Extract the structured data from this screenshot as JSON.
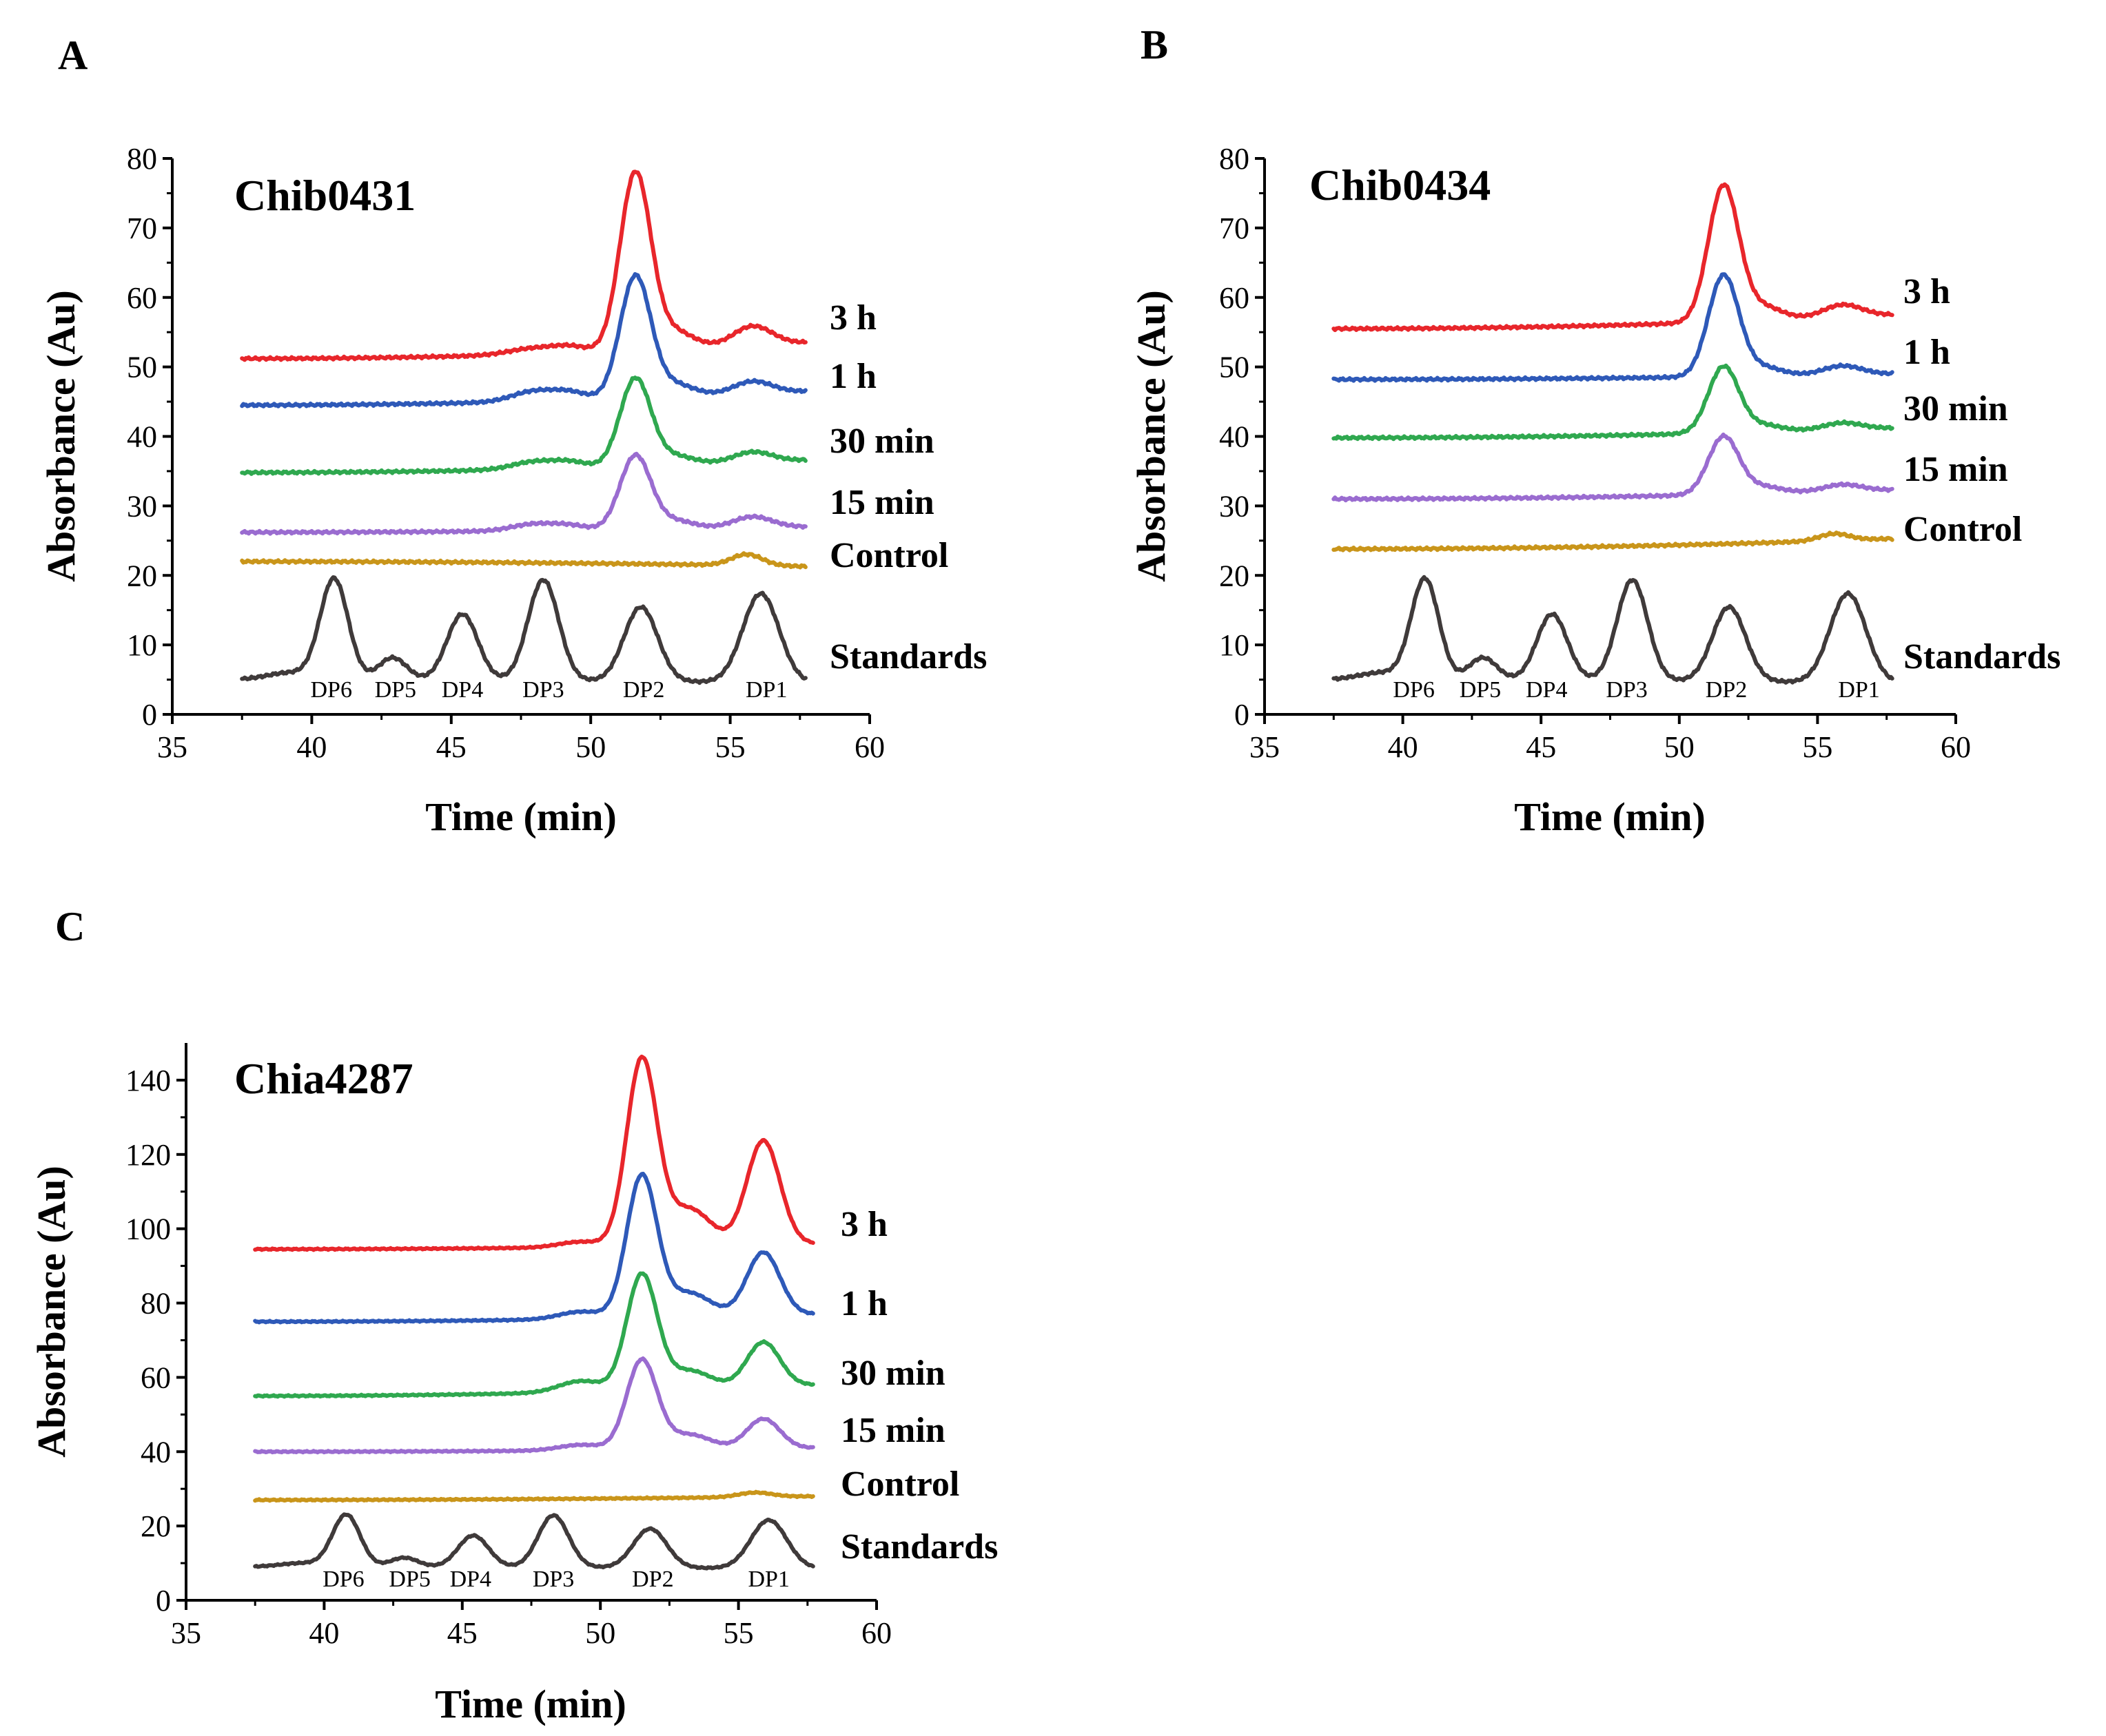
{
  "colors": {
    "3 h": "#e8262b",
    "1 h": "#2e59b8",
    "30 min": "#2fa84f",
    "15 min": "#9a6cd0",
    "Control": "#c9951a",
    "Standards": "#3f3a3a"
  },
  "chart_data": [
    {
      "panel": "A",
      "type": "line",
      "title": "Chib0431",
      "xlabel": "Time (min)",
      "ylabel": "Absorbance (Au)",
      "xlim": [
        35,
        60
      ],
      "ylim": [
        0,
        80
      ],
      "xticks": [
        35,
        40,
        45,
        50,
        55,
        60
      ],
      "yticks": [
        0,
        10,
        20,
        30,
        40,
        50,
        60,
        70,
        80
      ],
      "x_range": [
        37.5,
        57.7
      ],
      "series": [
        {
          "name": "3 h",
          "label": "3 h",
          "baseline": [
            51.2,
            53.5
          ],
          "peaks": [
            [
              48.0,
              0.9,
              0.9
            ],
            [
              49.3,
              0.8,
              0.6
            ],
            [
              51.6,
              25.5,
              0.55
            ],
            [
              53.0,
              2.5,
              0.7
            ],
            [
              55.8,
              2.8,
              0.7
            ]
          ]
        },
        {
          "name": "1 h",
          "label": "1 h",
          "baseline": [
            44.5,
            46.5
          ],
          "peaks": [
            [
              48.0,
              1.5,
              0.8
            ],
            [
              49.3,
              1.0,
              0.6
            ],
            [
              51.6,
              17.5,
              0.55
            ],
            [
              53.0,
              1.8,
              0.7
            ],
            [
              55.8,
              1.8,
              0.7
            ]
          ]
        },
        {
          "name": "30 min",
          "label": "30 min",
          "baseline": [
            34.8,
            36.6
          ],
          "peaks": [
            [
              48.0,
              1.1,
              0.8
            ],
            [
              49.3,
              0.8,
              0.6
            ],
            [
              51.6,
              12.6,
              0.55
            ],
            [
              53.0,
              1.3,
              0.7
            ],
            [
              55.8,
              1.5,
              0.7
            ]
          ]
        },
        {
          "name": "15 min",
          "label": "15 min",
          "baseline": [
            26.2,
            27.0
          ],
          "peaks": [
            [
              48.0,
              1.0,
              0.8
            ],
            [
              49.3,
              0.6,
              0.6
            ],
            [
              51.6,
              10.6,
              0.55
            ],
            [
              53.0,
              1.2,
              0.7
            ],
            [
              55.8,
              1.6,
              0.7
            ]
          ]
        },
        {
          "name": "Control",
          "label": "Control",
          "baseline": [
            22.0,
            21.3
          ],
          "peaks": [
            [
              55.6,
              1.6,
              0.55
            ]
          ]
        },
        {
          "name": "Standards",
          "label": "Standards",
          "baseline": [
            5.0,
            4.5
          ],
          "peaks": [
            [
              39.2,
              1.0,
              0.8
            ],
            [
              40.8,
              14.5,
              0.5
            ],
            [
              42.9,
              3.2,
              0.5
            ],
            [
              45.4,
              9.5,
              0.55
            ],
            [
              48.3,
              14.5,
              0.55
            ],
            [
              51.8,
              10.7,
              0.6
            ],
            [
              56.1,
              12.8,
              0.65
            ]
          ]
        }
      ],
      "peak_labels": [
        {
          "text": "DP6",
          "x": 40.7
        },
        {
          "text": "DP5",
          "x": 43.0
        },
        {
          "text": "DP4",
          "x": 45.4
        },
        {
          "text": "DP3",
          "x": 48.3
        },
        {
          "text": "DP2",
          "x": 51.9
        },
        {
          "text": "DP1",
          "x": 56.3
        }
      ]
    },
    {
      "panel": "B",
      "type": "line",
      "title": "Chib0434",
      "xlabel": "Time (min)",
      "ylabel": "Absorbance (Au)",
      "xlim": [
        35,
        60
      ],
      "ylim": [
        0,
        80
      ],
      "xticks": [
        35,
        40,
        45,
        50,
        55,
        60
      ],
      "yticks": [
        0,
        10,
        20,
        30,
        40,
        50,
        60,
        70,
        80
      ],
      "x_range": [
        37.5,
        57.7
      ],
      "series": [
        {
          "name": "3 h",
          "label": "3 h",
          "baseline": [
            55.5,
            57.5
          ],
          "peaks": [
            [
              51.6,
              19.5,
              0.55
            ],
            [
              53.0,
              2.0,
              0.7
            ],
            [
              55.9,
              1.8,
              0.7
            ]
          ]
        },
        {
          "name": "1 h",
          "label": "1 h",
          "baseline": [
            48.2,
            49.0
          ],
          "peaks": [
            [
              51.6,
              14.5,
              0.55
            ],
            [
              53.0,
              1.3,
              0.7
            ],
            [
              55.9,
              1.3,
              0.7
            ]
          ]
        },
        {
          "name": "30 min",
          "label": "30 min",
          "baseline": [
            39.8,
            41.2
          ],
          "peaks": [
            [
              51.6,
              9.5,
              0.55
            ],
            [
              53.0,
              1.0,
              0.7
            ],
            [
              55.9,
              1.0,
              0.7
            ]
          ]
        },
        {
          "name": "15 min",
          "label": "15 min",
          "baseline": [
            31.0,
            32.3
          ],
          "peaks": [
            [
              51.6,
              8.3,
              0.55
            ],
            [
              53.0,
              1.0,
              0.7
            ],
            [
              55.9,
              1.0,
              0.7
            ]
          ]
        },
        {
          "name": "Control",
          "label": "Control",
          "baseline": [
            23.8,
            25.3
          ],
          "peaks": [
            [
              55.6,
              1.0,
              0.55
            ]
          ]
        },
        {
          "name": "Standards",
          "label": "Standards",
          "baseline": [
            5.0,
            4.5
          ],
          "peaks": [
            [
              39.2,
              1.0,
              0.8
            ],
            [
              40.8,
              14.5,
              0.5
            ],
            [
              42.9,
              3.2,
              0.5
            ],
            [
              45.4,
              9.5,
              0.55
            ],
            [
              48.3,
              14.5,
              0.55
            ],
            [
              51.8,
              10.7,
              0.6
            ],
            [
              56.1,
              12.8,
              0.65
            ]
          ]
        }
      ],
      "peak_labels": [
        {
          "text": "DP6",
          "x": 40.4
        },
        {
          "text": "DP5",
          "x": 42.8
        },
        {
          "text": "DP4",
          "x": 45.2
        },
        {
          "text": "DP3",
          "x": 48.1
        },
        {
          "text": "DP2",
          "x": 51.7
        },
        {
          "text": "DP1",
          "x": 56.5
        }
      ]
    },
    {
      "panel": "C",
      "type": "line",
      "title": "Chia4287",
      "xlabel": "Time (min)",
      "ylabel": "Absorbance (Au)",
      "xlim": [
        35,
        60
      ],
      "ylim": [
        0,
        150
      ],
      "xticks": [
        35,
        40,
        45,
        50,
        55,
        60
      ],
      "yticks": [
        0,
        20,
        40,
        60,
        80,
        100,
        120,
        140
      ],
      "x_range": [
        37.5,
        57.7
      ],
      "series": [
        {
          "name": "3 h",
          "label": "3 h",
          "baseline": [
            94.5,
            96.0
          ],
          "peaks": [
            [
              49.3,
              1.5,
              0.8
            ],
            [
              51.5,
              50.0,
              0.55
            ],
            [
              53.2,
              10.0,
              0.8
            ],
            [
              55.9,
              28.0,
              0.6
            ]
          ]
        },
        {
          "name": "1 h",
          "label": "1 h",
          "baseline": [
            75.0,
            77.0
          ],
          "peaks": [
            [
              49.3,
              2.0,
              0.8
            ],
            [
              51.5,
              38.0,
              0.55
            ],
            [
              53.2,
              6.5,
              0.8
            ],
            [
              55.9,
              17.0,
              0.6
            ]
          ]
        },
        {
          "name": "30 min",
          "label": "30 min",
          "baseline": [
            55.0,
            58.0
          ],
          "peaks": [
            [
              49.3,
              3.0,
              0.8
            ],
            [
              51.5,
              31.0,
              0.55
            ],
            [
              53.2,
              5.0,
              0.8
            ],
            [
              55.9,
              12.0,
              0.6
            ]
          ]
        },
        {
          "name": "15 min",
          "label": "15 min",
          "baseline": [
            40.0,
            41.0
          ],
          "peaks": [
            [
              49.3,
              1.5,
              0.8
            ],
            [
              51.5,
              24.0,
              0.55
            ],
            [
              53.2,
              4.0,
              0.8
            ],
            [
              55.9,
              8.0,
              0.6
            ]
          ]
        },
        {
          "name": "Control",
          "label": "Control",
          "baseline": [
            27.0,
            28.0
          ],
          "peaks": [
            [
              55.6,
              1.2,
              0.6
            ]
          ]
        },
        {
          "name": "Standards",
          "label": "Standards",
          "baseline": [
            9.0,
            8.5
          ],
          "peaks": [
            [
              39.2,
              1.0,
              0.8
            ],
            [
              40.8,
              14.0,
              0.5
            ],
            [
              42.9,
              2.5,
              0.5
            ],
            [
              45.4,
              8.5,
              0.55
            ],
            [
              48.3,
              14.0,
              0.55
            ],
            [
              51.8,
              10.5,
              0.6
            ],
            [
              56.1,
              13.0,
              0.65
            ]
          ]
        }
      ],
      "peak_labels": [
        {
          "text": "DP6",
          "x": 40.7
        },
        {
          "text": "DP5",
          "x": 43.1
        },
        {
          "text": "DP4",
          "x": 45.3
        },
        {
          "text": "DP3",
          "x": 48.3
        },
        {
          "text": "DP2",
          "x": 51.9
        },
        {
          "text": "DP1",
          "x": 56.1
        }
      ]
    }
  ]
}
